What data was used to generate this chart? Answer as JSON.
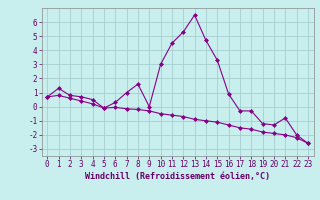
{
  "xlabel": "Windchill (Refroidissement éolien,°C)",
  "background_color": "#c8eeee",
  "grid_color": "#a0c8c8",
  "line_color": "#880088",
  "x_line1": [
    0,
    1,
    2,
    3,
    4,
    5,
    6,
    7,
    8,
    9,
    10,
    11,
    12,
    13,
    14,
    15,
    16,
    17,
    18,
    19,
    20,
    21,
    22,
    23
  ],
  "y_line1": [
    0.7,
    1.3,
    0.8,
    0.7,
    0.5,
    -0.1,
    0.3,
    1.0,
    1.6,
    0.0,
    3.0,
    4.5,
    5.3,
    6.5,
    4.7,
    3.3,
    0.9,
    -0.3,
    -0.3,
    -1.2,
    -1.3,
    -0.8,
    -2.0,
    -2.6
  ],
  "x_line2": [
    0,
    1,
    2,
    3,
    4,
    5,
    6,
    7,
    8,
    9,
    10,
    11,
    12,
    13,
    14,
    15,
    16,
    17,
    18,
    19,
    20,
    21,
    22,
    23
  ],
  "y_line2": [
    0.7,
    0.8,
    0.6,
    0.4,
    0.2,
    -0.1,
    -0.05,
    -0.15,
    -0.2,
    -0.3,
    -0.5,
    -0.6,
    -0.7,
    -0.9,
    -1.0,
    -1.1,
    -1.3,
    -1.5,
    -1.6,
    -1.8,
    -1.9,
    -2.0,
    -2.2,
    -2.6
  ],
  "xlim": [
    -0.5,
    23.5
  ],
  "ylim": [
    -3.5,
    7.0
  ],
  "yticks": [
    -3,
    -2,
    -1,
    0,
    1,
    2,
    3,
    4,
    5,
    6
  ],
  "xticks": [
    0,
    1,
    2,
    3,
    4,
    5,
    6,
    7,
    8,
    9,
    10,
    11,
    12,
    13,
    14,
    15,
    16,
    17,
    18,
    19,
    20,
    21,
    22,
    23
  ],
  "marker": "D",
  "markersize": 2,
  "linewidth": 0.8,
  "tick_fontsize": 5.5,
  "xlabel_fontsize": 6.0
}
